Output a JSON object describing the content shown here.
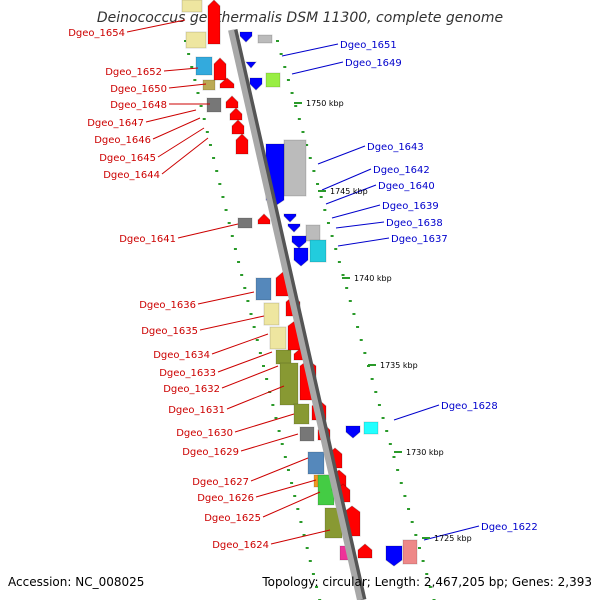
{
  "title": "Deinococcus geothermalis DSM 11300, complete genome",
  "accession": "Accession: NC_008025",
  "topology": "Topology: circular; Length: 2,467,205 bp; Genes: 2,393",
  "colors": {
    "left_label": "#cc0000",
    "right_label": "#0000cc",
    "reverse_arrow": "#0000ff",
    "forward_arrow": "#ff0000",
    "backbone": "#9a9a9a",
    "ruler": "#2a9a2a"
  },
  "ticks": [
    "1750 kbp",
    "1745 kbp",
    "1740 kbp",
    "1735 kbp",
    "1730 kbp",
    "1725 kbp"
  ],
  "left_genes": [
    "Dgeo_1654",
    "Dgeo_1652",
    "Dgeo_1650",
    "Dgeo_1648",
    "Dgeo_1647",
    "Dgeo_1646",
    "Dgeo_1645",
    "Dgeo_1644",
    "Dgeo_1641",
    "Dgeo_1636",
    "Dgeo_1635",
    "Dgeo_1634",
    "Dgeo_1633",
    "Dgeo_1632",
    "Dgeo_1631",
    "Dgeo_1630",
    "Dgeo_1629",
    "Dgeo_1627",
    "Dgeo_1626",
    "Dgeo_1625",
    "Dgeo_1624"
  ],
  "right_genes": [
    "Dgeo_1651",
    "Dgeo_1649",
    "Dgeo_1643",
    "Dgeo_1642",
    "Dgeo_1640",
    "Dgeo_1639",
    "Dgeo_1638",
    "Dgeo_1637",
    "Dgeo_1628",
    "Dgeo_1622"
  ]
}
